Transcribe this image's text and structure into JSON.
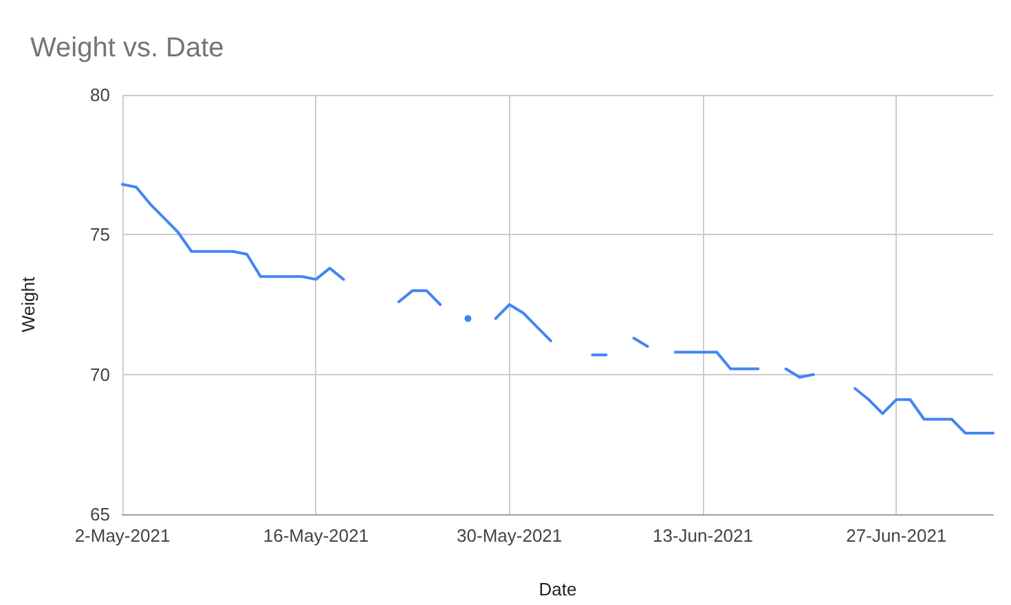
{
  "chart_data": {
    "type": "line",
    "title": "Weight vs. Date",
    "xlabel": "Date",
    "ylabel": "Weight",
    "x": [
      "2021-05-02",
      "2021-05-03",
      "2021-05-04",
      "2021-05-05",
      "2021-05-06",
      "2021-05-07",
      "2021-05-08",
      "2021-05-09",
      "2021-05-10",
      "2021-05-11",
      "2021-05-12",
      "2021-05-13",
      "2021-05-14",
      "2021-05-15",
      "2021-05-16",
      "2021-05-17",
      "2021-05-18",
      "2021-05-19",
      "2021-05-20",
      "2021-05-21",
      "2021-05-22",
      "2021-05-23",
      "2021-05-24",
      "2021-05-25",
      "2021-05-26",
      "2021-05-27",
      "2021-05-28",
      "2021-05-29",
      "2021-05-30",
      "2021-05-31",
      "2021-06-01",
      "2021-06-02",
      "2021-06-03",
      "2021-06-04",
      "2021-06-05",
      "2021-06-06",
      "2021-06-07",
      "2021-06-08",
      "2021-06-09",
      "2021-06-10",
      "2021-06-11",
      "2021-06-12",
      "2021-06-13",
      "2021-06-14",
      "2021-06-15",
      "2021-06-16",
      "2021-06-17",
      "2021-06-18",
      "2021-06-19",
      "2021-06-20",
      "2021-06-21",
      "2021-06-22",
      "2021-06-23",
      "2021-06-24",
      "2021-06-25",
      "2021-06-26",
      "2021-06-27",
      "2021-06-28",
      "2021-06-29",
      "2021-06-30",
      "2021-07-01",
      "2021-07-02",
      "2021-07-03",
      "2021-07-04"
    ],
    "values": [
      76.8,
      76.7,
      76.1,
      75.6,
      75.1,
      74.4,
      74.4,
      74.4,
      74.4,
      74.3,
      73.5,
      73.5,
      73.5,
      73.5,
      73.4,
      73.8,
      73.4,
      null,
      null,
      null,
      72.6,
      73.0,
      73.0,
      72.5,
      null,
      72.0,
      null,
      72.0,
      72.5,
      72.2,
      71.7,
      71.2,
      null,
      null,
      70.7,
      70.7,
      null,
      71.3,
      71.0,
      null,
      70.8,
      70.8,
      70.8,
      70.8,
      70.2,
      70.2,
      70.2,
      null,
      70.2,
      69.9,
      70.0,
      null,
      null,
      69.5,
      69.1,
      68.6,
      69.1,
      69.1,
      68.4,
      68.4,
      68.4,
      67.9,
      67.9,
      67.9
    ],
    "color": "#4285f4",
    "xlim": [
      "2021-05-02",
      "2021-07-04"
    ],
    "xticks": [
      {
        "value": "2021-05-02",
        "label": "2-May-2021"
      },
      {
        "value": "2021-05-16",
        "label": "16-May-2021"
      },
      {
        "value": "2021-05-30",
        "label": "30-May-2021"
      },
      {
        "value": "2021-06-13",
        "label": "13-Jun-2021"
      },
      {
        "value": "2021-06-27",
        "label": "27-Jun-2021"
      }
    ],
    "ylim": [
      65,
      80
    ],
    "yticks": [
      65,
      70,
      75,
      80
    ],
    "grid": true,
    "marker": "none",
    "line_style": "solid"
  }
}
